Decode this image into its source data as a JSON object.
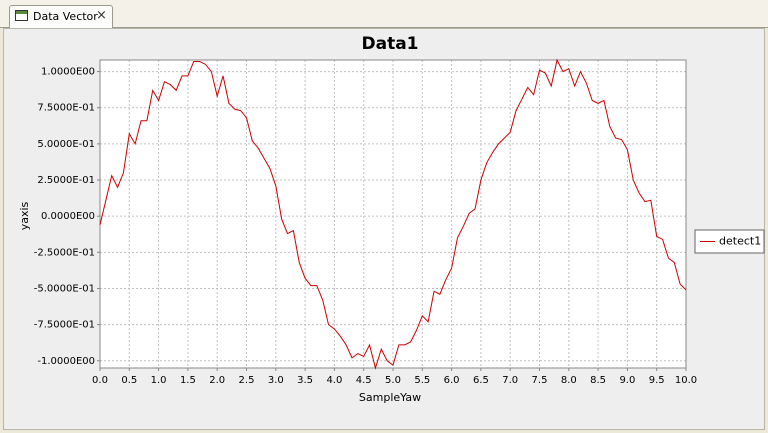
{
  "tab": {
    "title": "Data Vector"
  },
  "chart_data": {
    "type": "line",
    "title": "Data1",
    "x_label": "SampleYaw",
    "y_label": "yaxis",
    "x": [
      0.0,
      0.1,
      0.2,
      0.3,
      0.4,
      0.5,
      0.6,
      0.7,
      0.8,
      0.9,
      1.0,
      1.1,
      1.2,
      1.3,
      1.4,
      1.5,
      1.6,
      1.7,
      1.8,
      1.9,
      2.0,
      2.1,
      2.2,
      2.3,
      2.4,
      2.5,
      2.6,
      2.7,
      2.8,
      2.9,
      3.0,
      3.1,
      3.2,
      3.3,
      3.4,
      3.5,
      3.6,
      3.7,
      3.8,
      3.9,
      4.0,
      4.1,
      4.2,
      4.3,
      4.4,
      4.5,
      4.6,
      4.7,
      4.8,
      4.9,
      5.0,
      5.1,
      5.2,
      5.3,
      5.4,
      5.5,
      5.6,
      5.7,
      5.8,
      5.9,
      6.0,
      6.1,
      6.2,
      6.3,
      6.4,
      6.5,
      6.6,
      6.7,
      6.8,
      6.9,
      7.0,
      7.1,
      7.2,
      7.3,
      7.4,
      7.5,
      7.6,
      7.7,
      7.8,
      7.9,
      8.0,
      8.1,
      8.2,
      8.3,
      8.4,
      8.5,
      8.6,
      8.7,
      8.8,
      8.9,
      9.0,
      9.1,
      9.2,
      9.3,
      9.4,
      9.5,
      9.6,
      9.7,
      9.8,
      9.9,
      10.0
    ],
    "series": [
      {
        "name": "detect1",
        "color": "#cc0000",
        "values": [
          -0.06,
          0.11,
          0.28,
          0.2,
          0.3,
          0.57,
          0.5,
          0.66,
          0.66,
          0.87,
          0.8,
          0.93,
          0.91,
          0.87,
          0.97,
          0.97,
          1.07,
          1.07,
          1.05,
          1.0,
          0.83,
          0.97,
          0.78,
          0.74,
          0.73,
          0.68,
          0.52,
          0.47,
          0.4,
          0.33,
          0.21,
          -0.02,
          -0.12,
          -0.1,
          -0.32,
          -0.43,
          -0.48,
          -0.48,
          -0.58,
          -0.75,
          -0.78,
          -0.83,
          -0.89,
          -0.98,
          -0.95,
          -0.97,
          -0.89,
          -1.05,
          -0.92,
          -1.0,
          -1.03,
          -0.89,
          -0.89,
          -0.87,
          -0.79,
          -0.69,
          -0.73,
          -0.52,
          -0.54,
          -0.44,
          -0.36,
          -0.15,
          -0.07,
          0.02,
          0.05,
          0.25,
          0.37,
          0.44,
          0.5,
          0.54,
          0.58,
          0.73,
          0.81,
          0.89,
          0.84,
          1.01,
          0.99,
          0.9,
          1.08,
          1.0,
          1.02,
          0.9,
          1.0,
          0.92,
          0.8,
          0.78,
          0.8,
          0.62,
          0.54,
          0.53,
          0.46,
          0.25,
          0.16,
          0.1,
          0.11,
          -0.14,
          -0.16,
          -0.29,
          -0.32,
          -0.47,
          -0.51
        ]
      }
    ],
    "xlim": [
      0,
      10
    ],
    "ylim": [
      -1.05,
      1.08
    ],
    "xticks": [
      {
        "value": 0,
        "label": "0.0"
      },
      0.5,
      {
        "value": 1,
        "label": "1.0"
      },
      1.5,
      {
        "value": 2,
        "label": "2.0"
      },
      2.5,
      {
        "value": 3,
        "label": "3.0"
      },
      3.5,
      {
        "value": 4,
        "label": "4.0"
      },
      4.5,
      {
        "value": 5,
        "label": "5.0"
      },
      5.5,
      {
        "value": 6,
        "label": "6.0"
      },
      6.5,
      {
        "value": 7,
        "label": "7.0"
      },
      7.5,
      {
        "value": 8,
        "label": "8.0"
      },
      8.5,
      {
        "value": 9,
        "label": "9.0"
      },
      9.5,
      {
        "value": 10,
        "label": "10.0"
      }
    ],
    "yticks": [
      {
        "value": -1,
        "label": "-1.0000E00"
      },
      {
        "value": -0.75,
        "label": "-7.5000E-01"
      },
      {
        "value": -0.5,
        "label": "-5.0000E-01"
      },
      {
        "value": -0.25,
        "label": "-2.5000E-01"
      },
      {
        "value": 0,
        "label": "0.0000E00"
      },
      {
        "value": 0.25,
        "label": "2.5000E-01"
      },
      {
        "value": 0.5,
        "label": "5.0000E-01"
      },
      {
        "value": 0.75,
        "label": "7.5000E-01"
      },
      {
        "value": 1,
        "label": "1.0000E00"
      }
    ],
    "grid": true,
    "legend": "right"
  }
}
